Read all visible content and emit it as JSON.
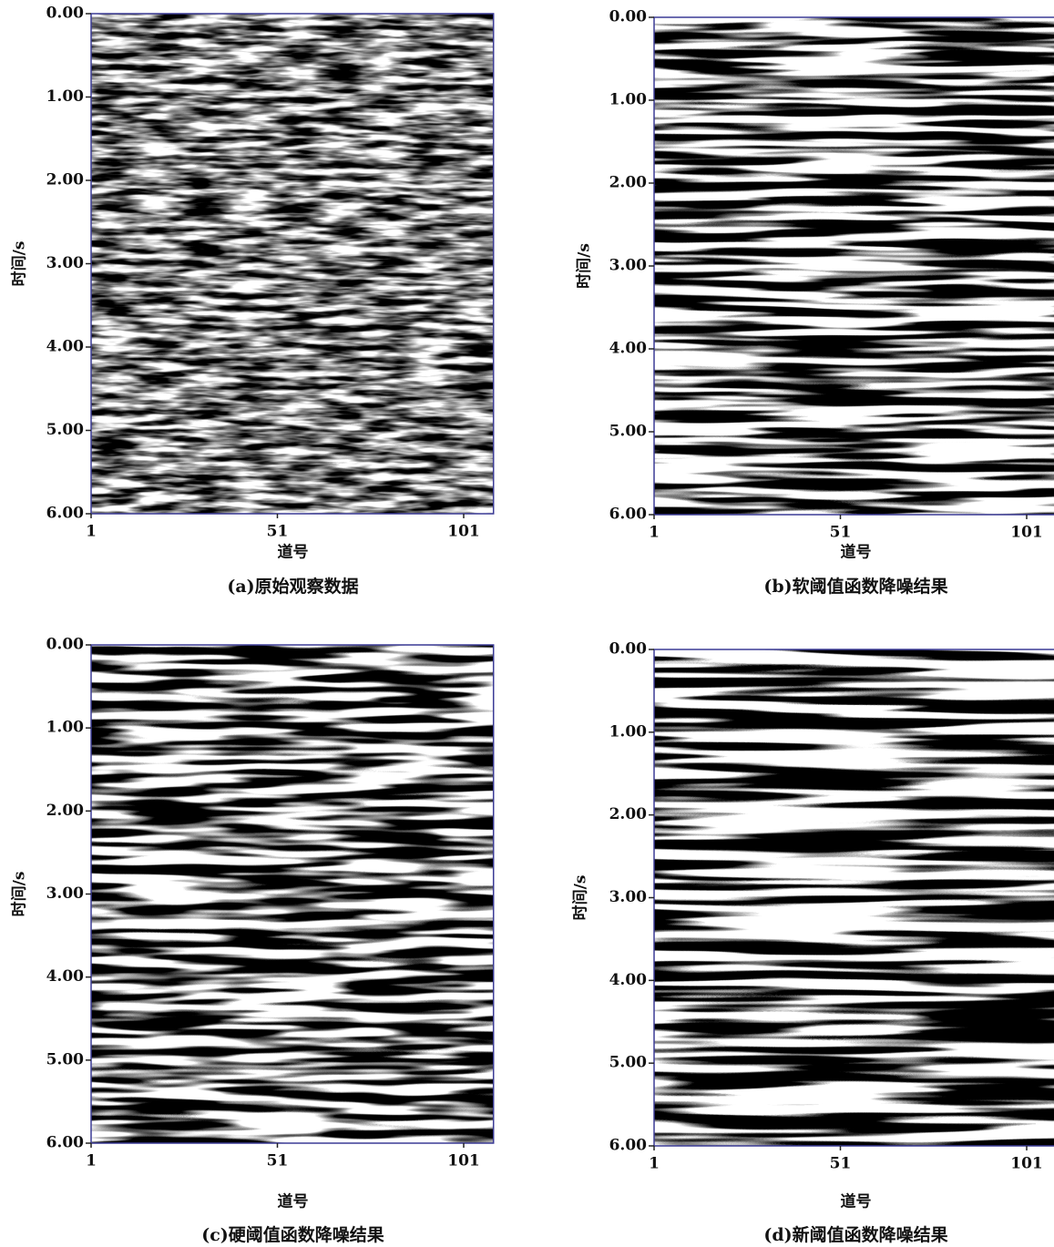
{
  "chart_data": [
    {
      "type": "seismic",
      "caption": "(a)原始观察数据",
      "xlabel": "道号",
      "ylabel": "时间/s",
      "xlim": [
        1,
        109
      ],
      "xticks": [
        1,
        51,
        101
      ],
      "ylim": [
        0,
        6
      ],
      "yticks": [
        {
          "value": 0,
          "label": "0.00"
        },
        {
          "value": 1,
          "label": "1.00"
        },
        {
          "value": 2,
          "label": "2.00"
        },
        {
          "value": 3,
          "label": "3.00"
        },
        {
          "value": 4,
          "label": "4.00"
        },
        {
          "value": 5,
          "label": "5.00"
        },
        {
          "value": 6,
          "label": "6.00"
        }
      ]
    },
    {
      "type": "seismic",
      "caption": "(b)软阈值函数降噪结果",
      "xlabel": "道号",
      "ylabel": "时间/s",
      "xlim": [
        1,
        109
      ],
      "xticks": [
        1,
        51,
        101
      ],
      "ylim": [
        0,
        6
      ],
      "yticks": [
        {
          "value": 0,
          "label": "0.00"
        },
        {
          "value": 1,
          "label": "1.00"
        },
        {
          "value": 2,
          "label": "2.00"
        },
        {
          "value": 3,
          "label": "3.00"
        },
        {
          "value": 4,
          "label": "4.00"
        },
        {
          "value": 5,
          "label": "5.00"
        },
        {
          "value": 6,
          "label": "6.00"
        }
      ]
    },
    {
      "type": "seismic",
      "caption": "(c)硬阈值函数降噪结果",
      "xlabel": "道号",
      "ylabel": "时间/s",
      "xlim": [
        1,
        109
      ],
      "xticks": [
        1,
        51,
        101
      ],
      "ylim": [
        0,
        6
      ],
      "yticks": [
        {
          "value": 0,
          "label": "0.00"
        },
        {
          "value": 1,
          "label": "1.00"
        },
        {
          "value": 2,
          "label": "2.00"
        },
        {
          "value": 3,
          "label": "3.00"
        },
        {
          "value": 4,
          "label": "4.00"
        },
        {
          "value": 5,
          "label": "5.00"
        },
        {
          "value": 6,
          "label": "6.00"
        }
      ]
    },
    {
      "type": "seismic",
      "caption": "(d)新阈值函数降噪结果",
      "xlabel": "道号",
      "ylabel": "时间/s",
      "xlim": [
        1,
        109
      ],
      "xticks": [
        1,
        51,
        101
      ],
      "ylim": [
        0,
        6
      ],
      "yticks": [
        {
          "value": 0,
          "label": "0.00"
        },
        {
          "value": 1,
          "label": "1.00"
        },
        {
          "value": 2,
          "label": "2.00"
        },
        {
          "value": 3,
          "label": "3.00"
        },
        {
          "value": 4,
          "label": "4.00"
        },
        {
          "value": 5,
          "label": "5.00"
        },
        {
          "value": 6,
          "label": "6.00"
        }
      ]
    }
  ]
}
